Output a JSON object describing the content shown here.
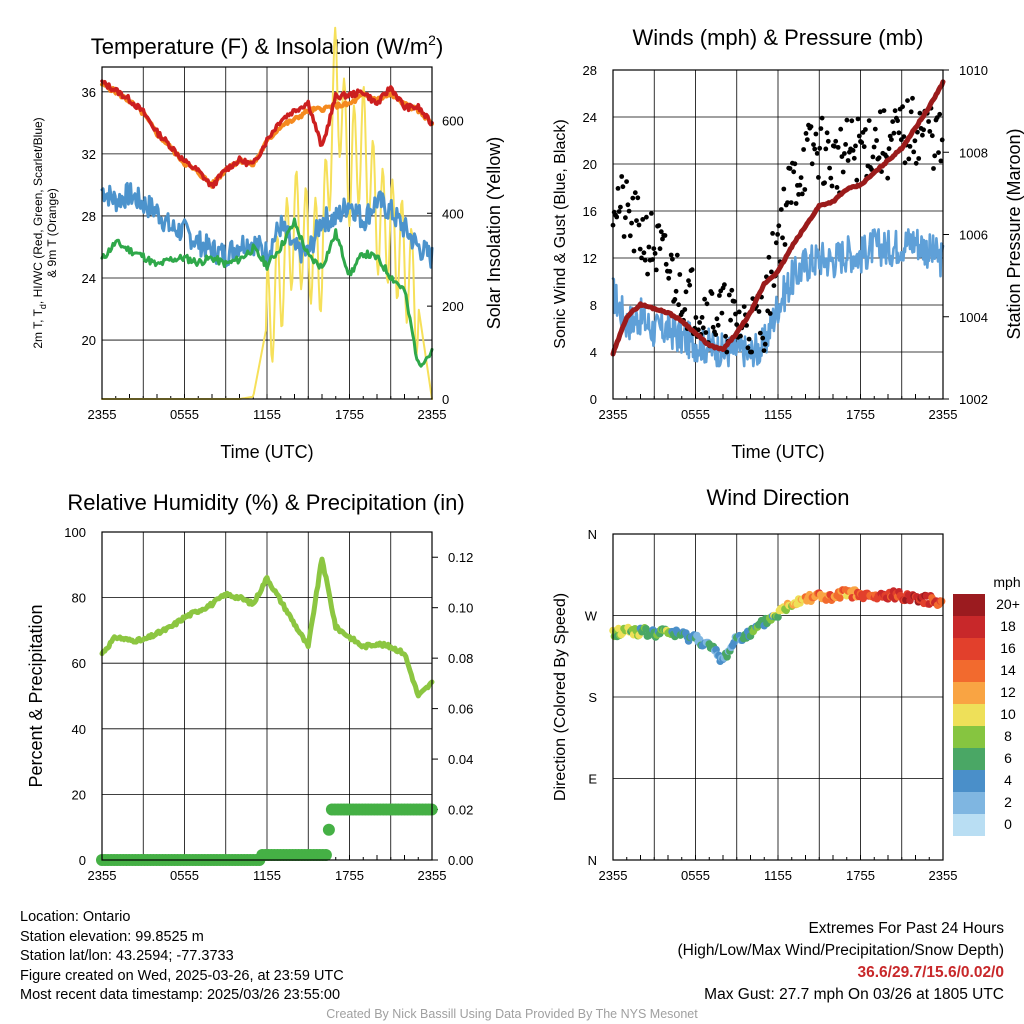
{
  "colors": {
    "temp": "#cc1f1f",
    "feels_like": "#2fa84a",
    "dewpoint": "#4c93cc",
    "temp9m": "#f58a1f",
    "solar": "#f6e05a",
    "sonic": "#5fa0d8",
    "gust": "#000000",
    "pressure": "#9b1b1b",
    "rh": "#8cc641",
    "precip": "#45b045",
    "grid": "#000000"
  },
  "chart_data": [
    {
      "id": "temperature",
      "type": "line",
      "title": "Temperature (F) & Insolation (W/m2)",
      "title_parts": {
        "main": "Temperature (F) & Insolation (W/m",
        "sup": "2",
        "close": ")"
      },
      "xlabel": "Time (UTC)",
      "ylabel_lines": [
        "2m T, T",
        "d",
        ", HI/WC (Red, Green, Scarlet/Blue)",
        "& 9m T (Orange)"
      ],
      "ylabel2": "Solar Insolation (Yellow)",
      "x_ticks": [
        "2355",
        "0555",
        "1155",
        "1755",
        "2355"
      ],
      "y_ticks": [
        20,
        24,
        28,
        32,
        36
      ],
      "y2_ticks": [
        0,
        200,
        400,
        600
      ],
      "ylim": [
        16.2,
        37.6
      ],
      "y2lim": [
        0,
        715
      ],
      "x_hours": [
        0,
        1,
        2,
        3,
        4,
        5,
        6,
        7,
        8,
        9,
        10,
        11,
        12,
        13,
        14,
        15,
        16,
        17,
        18,
        19,
        20,
        21,
        22,
        23,
        24
      ],
      "series": [
        {
          "key": "temp9m",
          "values": [
            36.5,
            36.0,
            35.4,
            34.6,
            33.3,
            32.4,
            31.4,
            30.8,
            30.0,
            31.0,
            31.6,
            31.3,
            32.8,
            33.8,
            34.2,
            34.8,
            34.9,
            35.1,
            35.2,
            35.8,
            35.5,
            35.8,
            35.2,
            34.8,
            34.0
          ]
        },
        {
          "key": "temp",
          "values": [
            36.6,
            36.1,
            35.5,
            34.7,
            33.4,
            32.5,
            31.5,
            30.9,
            29.9,
            31.0,
            31.6,
            31.3,
            32.9,
            34.2,
            34.8,
            35.3,
            32.4,
            35.7,
            35.8,
            36.0,
            35.2,
            36.3,
            35.0,
            35.0,
            33.9
          ]
        },
        {
          "key": "dewpoint",
          "values": [
            29.7,
            29.0,
            29.4,
            28.8,
            28.3,
            27.2,
            27.0,
            26.3,
            25.8,
            25.5,
            26.2,
            26.3,
            25.6,
            27.4,
            25.8,
            25.6,
            27.8,
            27.8,
            28.9,
            27.7,
            29.0,
            28.3,
            27.2,
            26.0,
            25.3
          ]
        },
        {
          "key": "feels_like",
          "values": [
            25.2,
            26.3,
            25.8,
            25.4,
            24.8,
            25.2,
            25.3,
            25.0,
            25.3,
            24.9,
            25.2,
            25.9,
            24.8,
            26.0,
            27.6,
            25.4,
            24.7,
            26.9,
            24.2,
            25.6,
            25.3,
            24.1,
            23.2,
            18.4,
            19.2
          ]
        },
        {
          "key": "solar",
          "values": [
            0,
            0,
            0,
            0,
            0,
            0,
            0,
            0,
            0,
            0,
            0,
            5,
            160,
            260,
            380,
            330,
            300,
            700,
            490,
            560,
            390,
            360,
            300,
            200,
            0
          ]
        }
      ]
    },
    {
      "id": "winds",
      "type": "line",
      "title": "Winds (mph) & Pressure (mb)",
      "xlabel": "Time (UTC)",
      "ylabel": "Sonic Wind & Gust (Blue, Black)",
      "ylabel2": "Station Pressure (Maroon)",
      "x_ticks": [
        "2355",
        "0555",
        "1155",
        "1755",
        "2355"
      ],
      "y_ticks": [
        0,
        4,
        8,
        12,
        16,
        20,
        24,
        28
      ],
      "y2_ticks": [
        1002,
        1004,
        1006,
        1008,
        1010
      ],
      "ylim": [
        0,
        28
      ],
      "y2lim": [
        1002,
        1010
      ],
      "x_hours": [
        0,
        1,
        2,
        3,
        4,
        5,
        6,
        7,
        8,
        9,
        10,
        11,
        12,
        13,
        14,
        15,
        16,
        17,
        18,
        19,
        20,
        21,
        22,
        23,
        24
      ],
      "series": [
        {
          "key": "sonic",
          "values": [
            9.0,
            6.5,
            7.0,
            5.8,
            6.0,
            5.2,
            4.8,
            4.5,
            4.0,
            4.2,
            3.8,
            4.6,
            8.0,
            10.2,
            11.5,
            12.0,
            11.8,
            12.5,
            12.2,
            13.0,
            12.8,
            13.2,
            13.5,
            12.6,
            11.8
          ]
        },
        {
          "key": "gust",
          "values": [
            17.5,
            15.5,
            14.0,
            13.0,
            11.0,
            9.5,
            8.2,
            7.5,
            7.0,
            6.5,
            6.2,
            7.0,
            14.0,
            18.0,
            20.5,
            21.5,
            20.0,
            20.8,
            21.5,
            22.0,
            21.5,
            22.5,
            22.8,
            23.0,
            21.0
          ]
        },
        {
          "key": "pressure",
          "values": [
            1003.1,
            1004.0,
            1004.3,
            1004.2,
            1004.1,
            1003.9,
            1003.6,
            1003.3,
            1003.2,
            1003.6,
            1004.1,
            1004.8,
            1005.1,
            1005.7,
            1006.2,
            1006.7,
            1006.8,
            1007.1,
            1007.2,
            1007.5,
            1007.8,
            1008.1,
            1008.6,
            1009.1,
            1009.7
          ]
        }
      ]
    },
    {
      "id": "humidity",
      "type": "line",
      "title": "Relative Humidity (%) & Precipitation (in)",
      "ylabel": "Percent & Precipitation",
      "x_ticks": [
        "2355",
        "0555",
        "1155",
        "1755",
        "2355"
      ],
      "y_ticks": [
        0,
        20,
        40,
        60,
        80,
        100
      ],
      "y2_ticks": [
        "0.00",
        "0.02",
        "0.04",
        "0.06",
        "0.08",
        "0.10",
        "0.12"
      ],
      "ylim": [
        0,
        100
      ],
      "y2lim": [
        0,
        0.13
      ],
      "x_hours": [
        0,
        1,
        2,
        3,
        4,
        5,
        6,
        7,
        8,
        9,
        10,
        11,
        12,
        13,
        14,
        15,
        16,
        17,
        18,
        19,
        20,
        21,
        22,
        23,
        24
      ],
      "series": [
        {
          "key": "rh",
          "values": [
            63,
            68,
            67,
            67,
            69,
            71,
            74,
            76,
            78,
            81,
            80,
            78,
            86,
            79,
            72,
            65,
            92,
            71,
            68,
            65,
            66,
            65,
            63,
            50,
            54
          ]
        },
        {
          "key": "precip",
          "values": [
            0,
            0,
            0,
            0,
            0,
            0,
            0,
            0,
            0,
            0,
            0,
            0,
            0.002,
            0.002,
            0.002,
            0.002,
            0.012,
            0.02,
            0.02,
            0.02,
            0.02,
            0.02,
            0.02,
            0.02,
            0.02
          ]
        }
      ]
    },
    {
      "id": "direction",
      "type": "scatter",
      "title": "Wind Direction",
      "ylabel": "Direction (Colored By Speed)",
      "x_ticks": [
        "2355",
        "0555",
        "1155",
        "1755",
        "2355"
      ],
      "y_ticks": [
        "N",
        "W",
        "S",
        "E",
        "N"
      ],
      "ylim_deg": [
        0,
        360
      ],
      "x_hours": [
        0,
        1,
        2,
        3,
        4,
        5,
        6,
        7,
        8,
        9,
        10,
        11,
        12,
        13,
        14,
        15,
        16,
        17,
        18,
        19,
        20,
        21,
        22,
        23,
        24
      ],
      "direction_deg": [
        250,
        254,
        252,
        250,
        252,
        248,
        246,
        236,
        220,
        246,
        250,
        262,
        272,
        284,
        290,
        292,
        288,
        296,
        292,
        290,
        292,
        292,
        290,
        287,
        286
      ],
      "speed_mph": [
        8,
        9,
        7,
        6,
        7,
        5,
        4,
        4,
        3,
        4,
        5,
        5,
        8,
        10,
        12,
        13,
        14,
        13,
        14,
        15,
        16,
        17,
        18,
        17,
        16
      ],
      "legend_title": "mph",
      "legend_labels": [
        "20+",
        "18",
        "16",
        "14",
        "12",
        "10",
        "8",
        "6",
        "4",
        "2",
        "0"
      ],
      "legend_colors": [
        "#9b1b1f",
        "#c8282a",
        "#e2402c",
        "#f26a2e",
        "#f9a443",
        "#eee059",
        "#86c540",
        "#4aa765",
        "#4a8fc9",
        "#7fb6e1",
        "#b9def3"
      ]
    }
  ],
  "info": {
    "location": "Location: Ontario",
    "elevation": "Station elevation: 99.8525 m",
    "latlon": "Station lat/lon: 43.2594; -77.3733",
    "created": "Figure created on Wed, 2025-03-26, at 23:59 UTC",
    "recent": "Most recent data timestamp: 2025/03/26 23:55:00"
  },
  "extremes": {
    "title": "Extremes For Past 24 Hours",
    "subtitle": "(High/Low/Max Wind/Precipitation/Snow Depth)",
    "values": "36.6/29.7/15.6/0.02/0",
    "gust": "Max Gust: 27.7 mph On 03/26 at 1805 UTC"
  },
  "credit": "Created By Nick Bassill Using Data Provided By The NYS Mesonet"
}
